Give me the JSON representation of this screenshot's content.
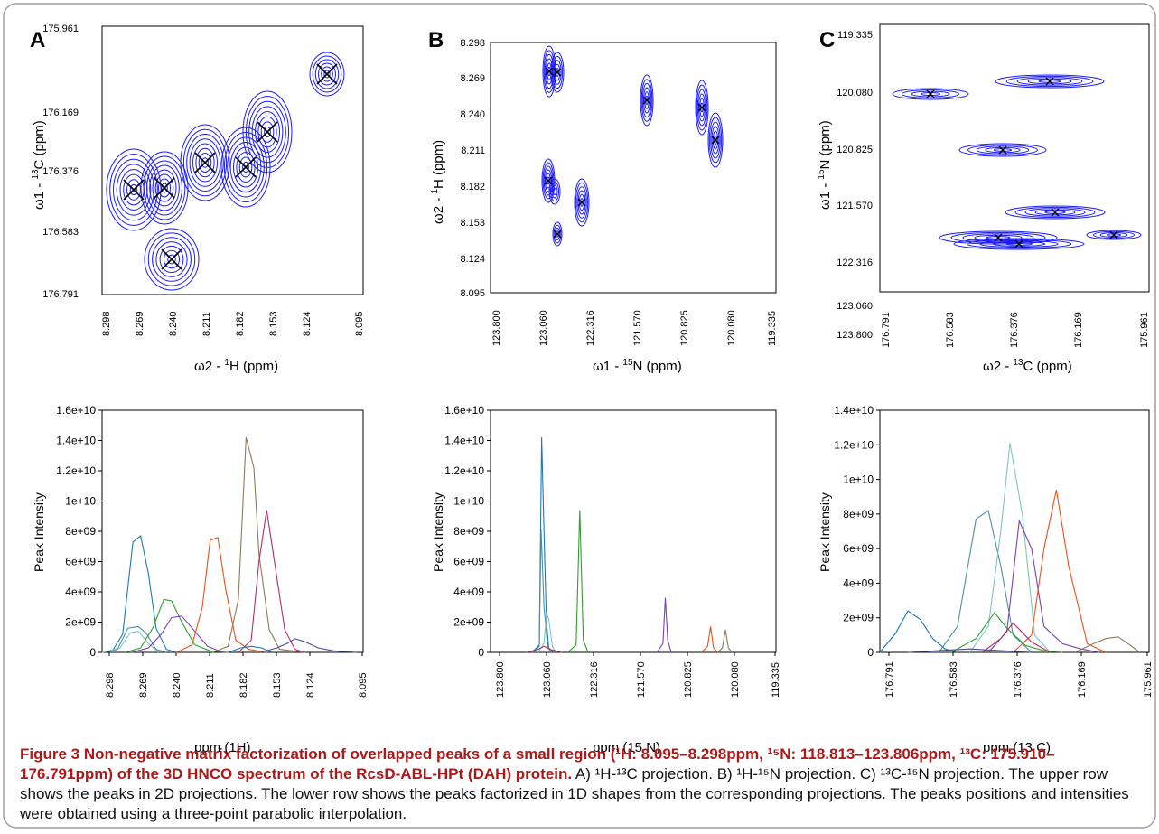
{
  "colors": {
    "border": "#9aa0a6",
    "contour": "#1a1aff",
    "peak_mark": "#000000",
    "caption_accent": "#b01818",
    "series": [
      "#1f78b4",
      "#4c8fa0",
      "#7fc4c0",
      "#2ca02c",
      "#7b3fb5",
      "#e8501a",
      "#8b7a5a",
      "#b0306a",
      "#4a4a9a"
    ]
  },
  "panels": [
    {
      "letter": "A",
      "xlabel_main": "ω2 - ",
      "xlabel_sup": "1",
      "xlabel_tail": "H  (ppm)",
      "ylabel_main": "ω1 - ",
      "ylabel_sup": "13",
      "ylabel_tail": "C (ppm)",
      "xticks": [
        "8.298",
        "8.269",
        "8.240",
        "8.211",
        "8.182",
        "8.153",
        "8.124",
        "8.095"
      ],
      "yticks": [
        "175.961",
        "176.169",
        "176.376",
        "176.583",
        "176.791"
      ]
    },
    {
      "letter": "B",
      "xlabel_main": "ω1 - ",
      "xlabel_sup": "15",
      "xlabel_tail": "N (ppm)",
      "ylabel_main": "ω2 - ",
      "ylabel_sup": "1",
      "ylabel_tail": "H  (ppm)",
      "xticks": [
        "123.800",
        "123.060",
        "122.316",
        "121.570",
        "120.825",
        "120.080",
        "119.335"
      ],
      "yticks": [
        "8.298",
        "8.269",
        "8.240",
        "8.211",
        "8.182",
        "8.153",
        "8.124",
        "8.095"
      ]
    },
    {
      "letter": "C",
      "xlabel_main": "ω2 - ",
      "xlabel_sup": "13",
      "xlabel_tail": "C  (ppm)",
      "ylabel_main": "ω1 - ",
      "ylabel_sup": "15",
      "ylabel_tail": "N (ppm)",
      "xticks": [
        "176.791",
        "176.583",
        "176.376",
        "176.169",
        "175.961"
      ],
      "yticks": [
        "119.335",
        "120.080",
        "120.825",
        "121.570",
        "122.316",
        "123.060",
        "123.800"
      ]
    }
  ],
  "chart_data": [
    {
      "type": "line",
      "panel": "A-1D",
      "xlabel": "ppm (1H)",
      "ylabel": "Peak Intensity",
      "x_ticks": [
        "8.298",
        "8.269",
        "8.240",
        "8.211",
        "8.182",
        "8.153",
        "8.124",
        "8.095"
      ],
      "y_ticks": [
        "0",
        "2e+09",
        "4e+09",
        "6e+09",
        "8e+09",
        "1e+10",
        "1.2e+10",
        "1.4e+10",
        "1.6e+10"
      ],
      "xlim": [
        8.298,
        8.095
      ],
      "ylim": [
        0,
        16000000000.0
      ],
      "series": [
        {
          "x": [
            8.298,
            8.29,
            8.282,
            8.274,
            8.268,
            8.262,
            8.256,
            8.248,
            8.24
          ],
          "values": [
            0,
            100000000.0,
            1200000000.0,
            7300000000.0,
            7700000000.0,
            5200000000.0,
            1600000000.0,
            200000000.0,
            0
          ]
        },
        {
          "x": [
            8.298,
            8.286,
            8.278,
            8.27,
            8.264,
            8.256,
            8.248
          ],
          "values": [
            0,
            200000000.0,
            1600000000.0,
            1700000000.0,
            1300000000.0,
            200000000.0,
            0
          ]
        },
        {
          "x": [
            8.298,
            8.284,
            8.276,
            8.27,
            8.262,
            8.254
          ],
          "values": [
            0,
            300000000.0,
            1300000000.0,
            1400000000.0,
            600000000.0,
            0
          ]
        },
        {
          "x": [
            8.28,
            8.268,
            8.258,
            8.25,
            8.244,
            8.236,
            8.226,
            8.214,
            8.2
          ],
          "values": [
            0,
            300000000.0,
            1700000000.0,
            3500000000.0,
            3400000000.0,
            2000000000.0,
            500000000.0,
            100000000.0,
            0
          ]
        },
        {
          "x": [
            8.275,
            8.262,
            8.252,
            8.244,
            8.236,
            8.228,
            8.216,
            8.204
          ],
          "values": [
            0,
            300000000.0,
            1200000000.0,
            2300000000.0,
            2400000000.0,
            1600000000.0,
            400000000.0,
            0
          ]
        },
        {
          "x": [
            8.24,
            8.228,
            8.22,
            8.214,
            8.208,
            8.202,
            8.194,
            8.184,
            8.17
          ],
          "values": [
            0,
            500000000.0,
            3000000000.0,
            7400000000.0,
            7600000000.0,
            4200000000.0,
            800000000.0,
            200000000.0,
            0
          ]
        },
        {
          "x": [
            8.212,
            8.2,
            8.192,
            8.186,
            8.18,
            8.176,
            8.168,
            8.16,
            8.15,
            8.14
          ],
          "values": [
            0,
            400000000.0,
            3500000000.0,
            14200000000.0,
            12200000000.0,
            6500000000.0,
            1500000000.0,
            200000000.0,
            100000000.0,
            0
          ]
        },
        {
          "x": [
            8.192,
            8.182,
            8.176,
            8.17,
            8.164,
            8.156,
            8.148,
            8.14
          ],
          "values": [
            0,
            800000000.0,
            6000000000.0,
            9400000000.0,
            6000000000.0,
            1500000000.0,
            200000000.0,
            0
          ]
        },
        {
          "x": [
            8.175,
            8.162,
            8.154,
            8.148,
            8.14,
            8.13,
            8.118,
            8.1
          ],
          "values": [
            0,
            300000000.0,
            600000000.0,
            900000000.0,
            700000000.0,
            300000000.0,
            100000000.0,
            0
          ]
        },
        {
          "x": [
            8.2,
            8.19,
            8.182,
            8.174,
            8.166
          ],
          "values": [
            0,
            300000000.0,
            400000000.0,
            300000000.0,
            0
          ]
        }
      ]
    },
    {
      "type": "line",
      "panel": "B-1D",
      "xlabel": "ppm (15 N)",
      "ylabel": "Peak Intensity",
      "x_ticks": [
        "123.800",
        "123.060",
        "122.316",
        "121.570",
        "120.825",
        "120.080",
        "119.335"
      ],
      "y_ticks": [
        "0",
        "2e+09",
        "4e+09",
        "6e+09",
        "8e+09",
        "1e+10",
        "1.2e+10",
        "1.4e+10",
        "1.6e+10"
      ],
      "xlim": [
        123.8,
        119.0
      ],
      "ylim": [
        0,
        16000000000.0
      ],
      "series": [
        {
          "x": [
            123.1,
            122.98,
            122.94,
            122.9,
            122.86,
            122.82,
            122.74
          ],
          "values": [
            0,
            500000000.0,
            14200000000.0,
            8000000000.0,
            2000000000.0,
            300000000.0,
            0
          ]
        },
        {
          "x": [
            123.08,
            122.98,
            122.95,
            122.9,
            122.84,
            122.78
          ],
          "values": [
            0,
            400000000.0,
            8100000000.0,
            3000000000.0,
            400000000.0,
            0
          ]
        },
        {
          "x": [
            123.0,
            122.9,
            122.86,
            122.82,
            122.76,
            122.7
          ],
          "values": [
            0,
            600000000.0,
            2600000000.0,
            2200000000.0,
            400000000.0,
            0
          ]
        },
        {
          "x": [
            122.5,
            122.36,
            122.3,
            122.24,
            122.16
          ],
          "values": [
            0,
            500000000.0,
            9400000000.0,
            800000000.0,
            0
          ]
        },
        {
          "x": [
            121.0,
            120.9,
            120.86,
            120.82,
            120.76
          ],
          "values": [
            0,
            600000000.0,
            3600000000.0,
            800000000.0,
            0
          ]
        },
        {
          "x": [
            120.25,
            120.15,
            120.1,
            120.05,
            119.98
          ],
          "values": [
            0,
            400000000.0,
            1700000000.0,
            300000000.0,
            0
          ]
        },
        {
          "x": [
            119.98,
            119.9,
            119.85,
            119.8,
            119.74
          ],
          "values": [
            0,
            300000000.0,
            1500000000.0,
            300000000.0,
            0
          ]
        },
        {
          "x": [
            123.2,
            123.0,
            122.9,
            122.8,
            122.6
          ],
          "values": [
            0,
            200000000.0,
            400000000.0,
            200000000.0,
            0
          ]
        }
      ]
    },
    {
      "type": "line",
      "panel": "C-1D",
      "xlabel": "ppm (13 C)",
      "ylabel": "Peak Intensity",
      "x_ticks": [
        "176.791",
        "176.583",
        "176.376",
        "176.169",
        "175.961"
      ],
      "y_ticks": [
        "0",
        "2e+09",
        "4e+09",
        "6e+09",
        "8e+09",
        "1e+10",
        "1.2e+10",
        "1.4e+10"
      ],
      "xlim": [
        176.791,
        175.92
      ],
      "ylim": [
        0,
        14000000000.0
      ],
      "series": [
        {
          "x": [
            176.791,
            176.74,
            176.7,
            176.66,
            176.62,
            176.58,
            176.54
          ],
          "values": [
            0,
            1100000000.0,
            2400000000.0,
            1900000000.0,
            800000000.0,
            200000000.0,
            0
          ]
        },
        {
          "x": [
            176.6,
            176.54,
            176.48,
            176.44,
            176.4,
            176.36,
            176.3
          ],
          "values": [
            0,
            1500000000.0,
            7700000000.0,
            8200000000.0,
            5000000000.0,
            1000000000.0,
            0
          ]
        },
        {
          "x": [
            176.5,
            176.44,
            176.4,
            176.37,
            176.33,
            176.29,
            176.24
          ],
          "values": [
            0,
            1500000000.0,
            7000000000.0,
            12100000000.0,
            8000000000.0,
            1000000000.0,
            0
          ]
        },
        {
          "x": [
            176.56,
            176.48,
            176.42,
            176.38,
            176.32,
            176.26,
            176.2
          ],
          "values": [
            0,
            800000000.0,
            2300000000.0,
            1400000000.0,
            400000000.0,
            100000000.0,
            0
          ]
        },
        {
          "x": [
            176.44,
            176.38,
            176.34,
            176.3,
            176.26,
            176.2,
            176.14,
            176.08
          ],
          "values": [
            0,
            1200000000.0,
            7600000000.0,
            6000000000.0,
            1500000000.0,
            500000000.0,
            200000000.0,
            0
          ]
        },
        {
          "x": [
            176.36,
            176.3,
            176.26,
            176.22,
            176.18,
            176.12,
            176.06
          ],
          "values": [
            0,
            1000000000.0,
            6000000000.0,
            9400000000.0,
            5000000000.0,
            500000000.0,
            0
          ]
        },
        {
          "x": [
            176.16,
            176.1,
            176.06,
            176.02,
            175.98,
            175.95
          ],
          "values": [
            0,
            500000000.0,
            800000000.0,
            900000000.0,
            400000000.0,
            0
          ]
        },
        {
          "x": [
            176.46,
            176.4,
            176.36,
            176.3,
            176.24
          ],
          "values": [
            0,
            800000000.0,
            1700000000.0,
            600000000.0,
            0
          ]
        },
        {
          "x": [
            176.7,
            176.6,
            176.5,
            176.4,
            176.3
          ],
          "values": [
            0,
            100000000.0,
            200000000.0,
            100000000.0,
            0
          ]
        }
      ]
    }
  ],
  "caption": {
    "lead": "Figure 3 Non-negative matrix factorization of overlapped peaks of a small region (¹H: 8.095–8.298ppm, ¹⁵N: 118.813–123.806ppm, ¹³C: 175.910–176.791ppm) of the 3D HNCO spectrum of the RcsD-ABL-HPt (DAH) protein.",
    "body": " A) ¹H-¹³C projection. B) ¹H-¹⁵N projection. C) ¹³C-¹⁵N projection. The upper row shows the peaks in 2D projections. The lower row shows the peaks factorized in 1D shapes from the corresponding projections. The peaks positions and intensities were obtained using a three-point parabolic interpolation."
  }
}
